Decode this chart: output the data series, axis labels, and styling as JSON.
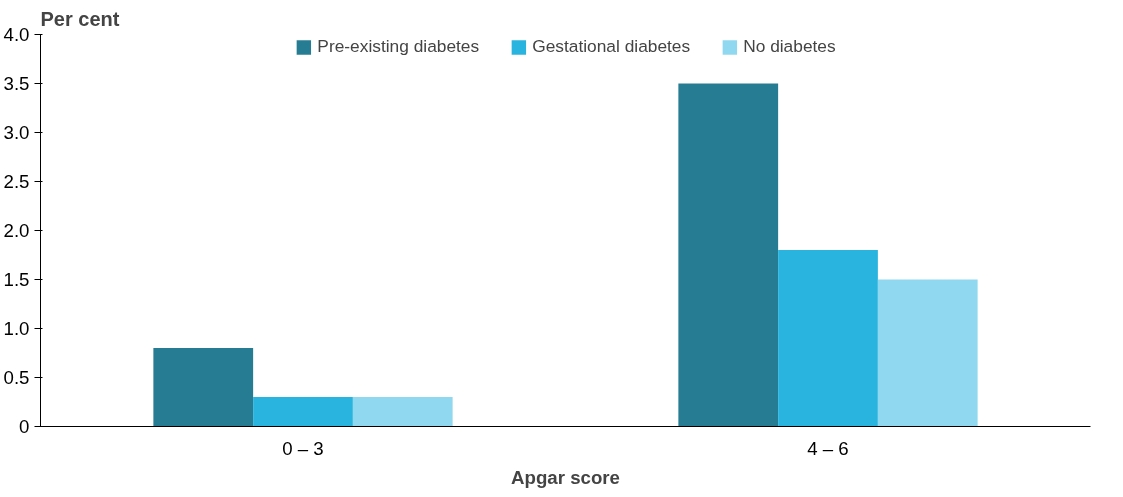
{
  "chart_data": {
    "type": "bar",
    "xlabel": "Apgar score",
    "ylabel": "Per cent",
    "categories": [
      "0 – 3",
      "4 – 6"
    ],
    "series": [
      {
        "name": "Pre-existing diabetes",
        "color": "#267c93",
        "values": [
          0.8,
          3.5
        ]
      },
      {
        "name": "Gestational diabetes",
        "color": "#28b4de",
        "values": [
          0.3,
          1.8
        ]
      },
      {
        "name": "No diabetes",
        "color": "#8fd8f0",
        "values": [
          0.3,
          1.5
        ]
      }
    ],
    "ylim": [
      0,
      4
    ],
    "yticks": [
      {
        "value": 0,
        "label": "0"
      },
      {
        "value": 0.5,
        "label": "0.5"
      },
      {
        "value": 1,
        "label": "1.0"
      },
      {
        "value": 1.5,
        "label": "1.5"
      },
      {
        "value": 2,
        "label": "2.0"
      },
      {
        "value": 2.5,
        "label": "2.5"
      },
      {
        "value": 3,
        "label": "3.0"
      },
      {
        "value": 3.5,
        "label": "3.5"
      },
      {
        "value": 4,
        "label": "4.0"
      }
    ],
    "grid": false,
    "legend": "top"
  }
}
